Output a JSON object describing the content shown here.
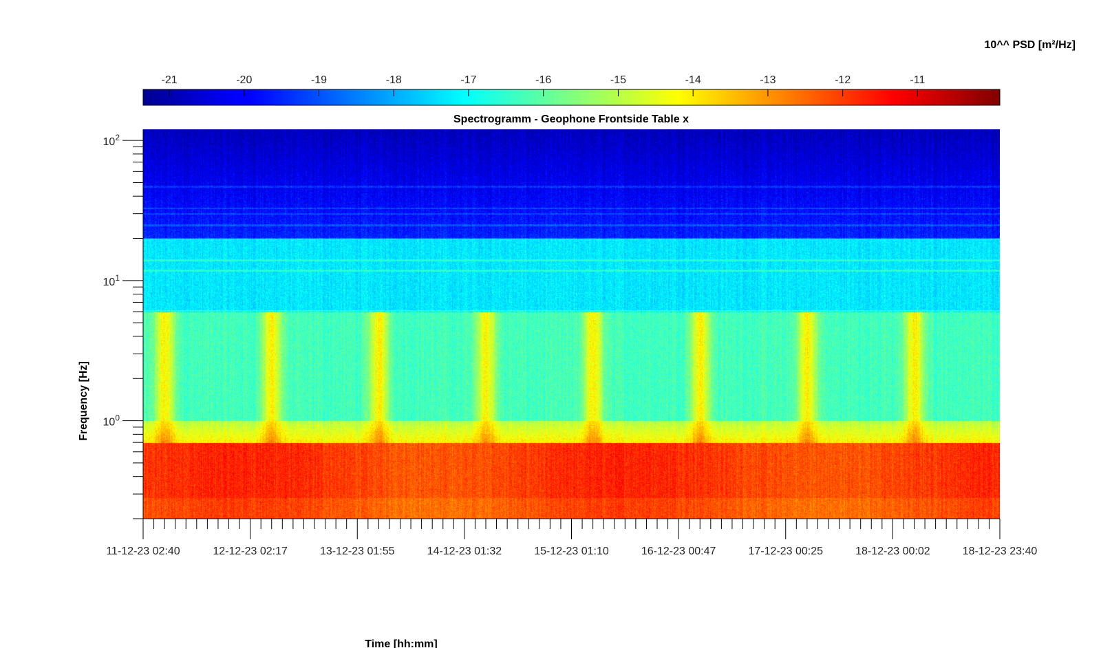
{
  "chart_data": {
    "type": "heatmap",
    "title": "Spectrogramm - Geophone Frontside Table x",
    "xlabel": "Time [hh:mm]",
    "ylabel": "Frequency [Hz]",
    "y_scale": "log",
    "ylim": [
      0.2,
      120
    ],
    "y_ticks": [
      {
        "value": 1,
        "base": "10",
        "exp": "0"
      },
      {
        "value": 10,
        "base": "10",
        "exp": "1"
      },
      {
        "value": 100,
        "base": "10",
        "exp": "2"
      }
    ],
    "x_ticks": [
      "11-12-23 02:40",
      "12-12-23 02:17",
      "13-12-23 01:55",
      "14-12-23 01:32",
      "15-12-23 01:10",
      "16-12-23 00:47",
      "17-12-23 00:25",
      "18-12-23 00:02",
      "18-12-23 23:40"
    ],
    "colorbar": {
      "label": "10^^ PSD [m²/Hz]",
      "ticks": [
        "-21",
        "-20",
        "-19",
        "-18",
        "-17",
        "-16",
        "-15",
        "-14",
        "-13",
        "-12",
        "-11"
      ],
      "range": [
        -21.35,
        -9.9
      ],
      "colormap": "jet"
    },
    "features": {
      "background_high_freq_level": -19.5,
      "mid_freq_level": -17,
      "low_freq_band_hz": [
        0.2,
        0.7
      ],
      "low_freq_level": -12,
      "daytime_bursts_hz": [
        1,
        6
      ],
      "daytime_burst_level": -14.5,
      "narrow_lines_hz": [
        6.1,
        11.8,
        14,
        20,
        25,
        30,
        33,
        47
      ]
    }
  }
}
